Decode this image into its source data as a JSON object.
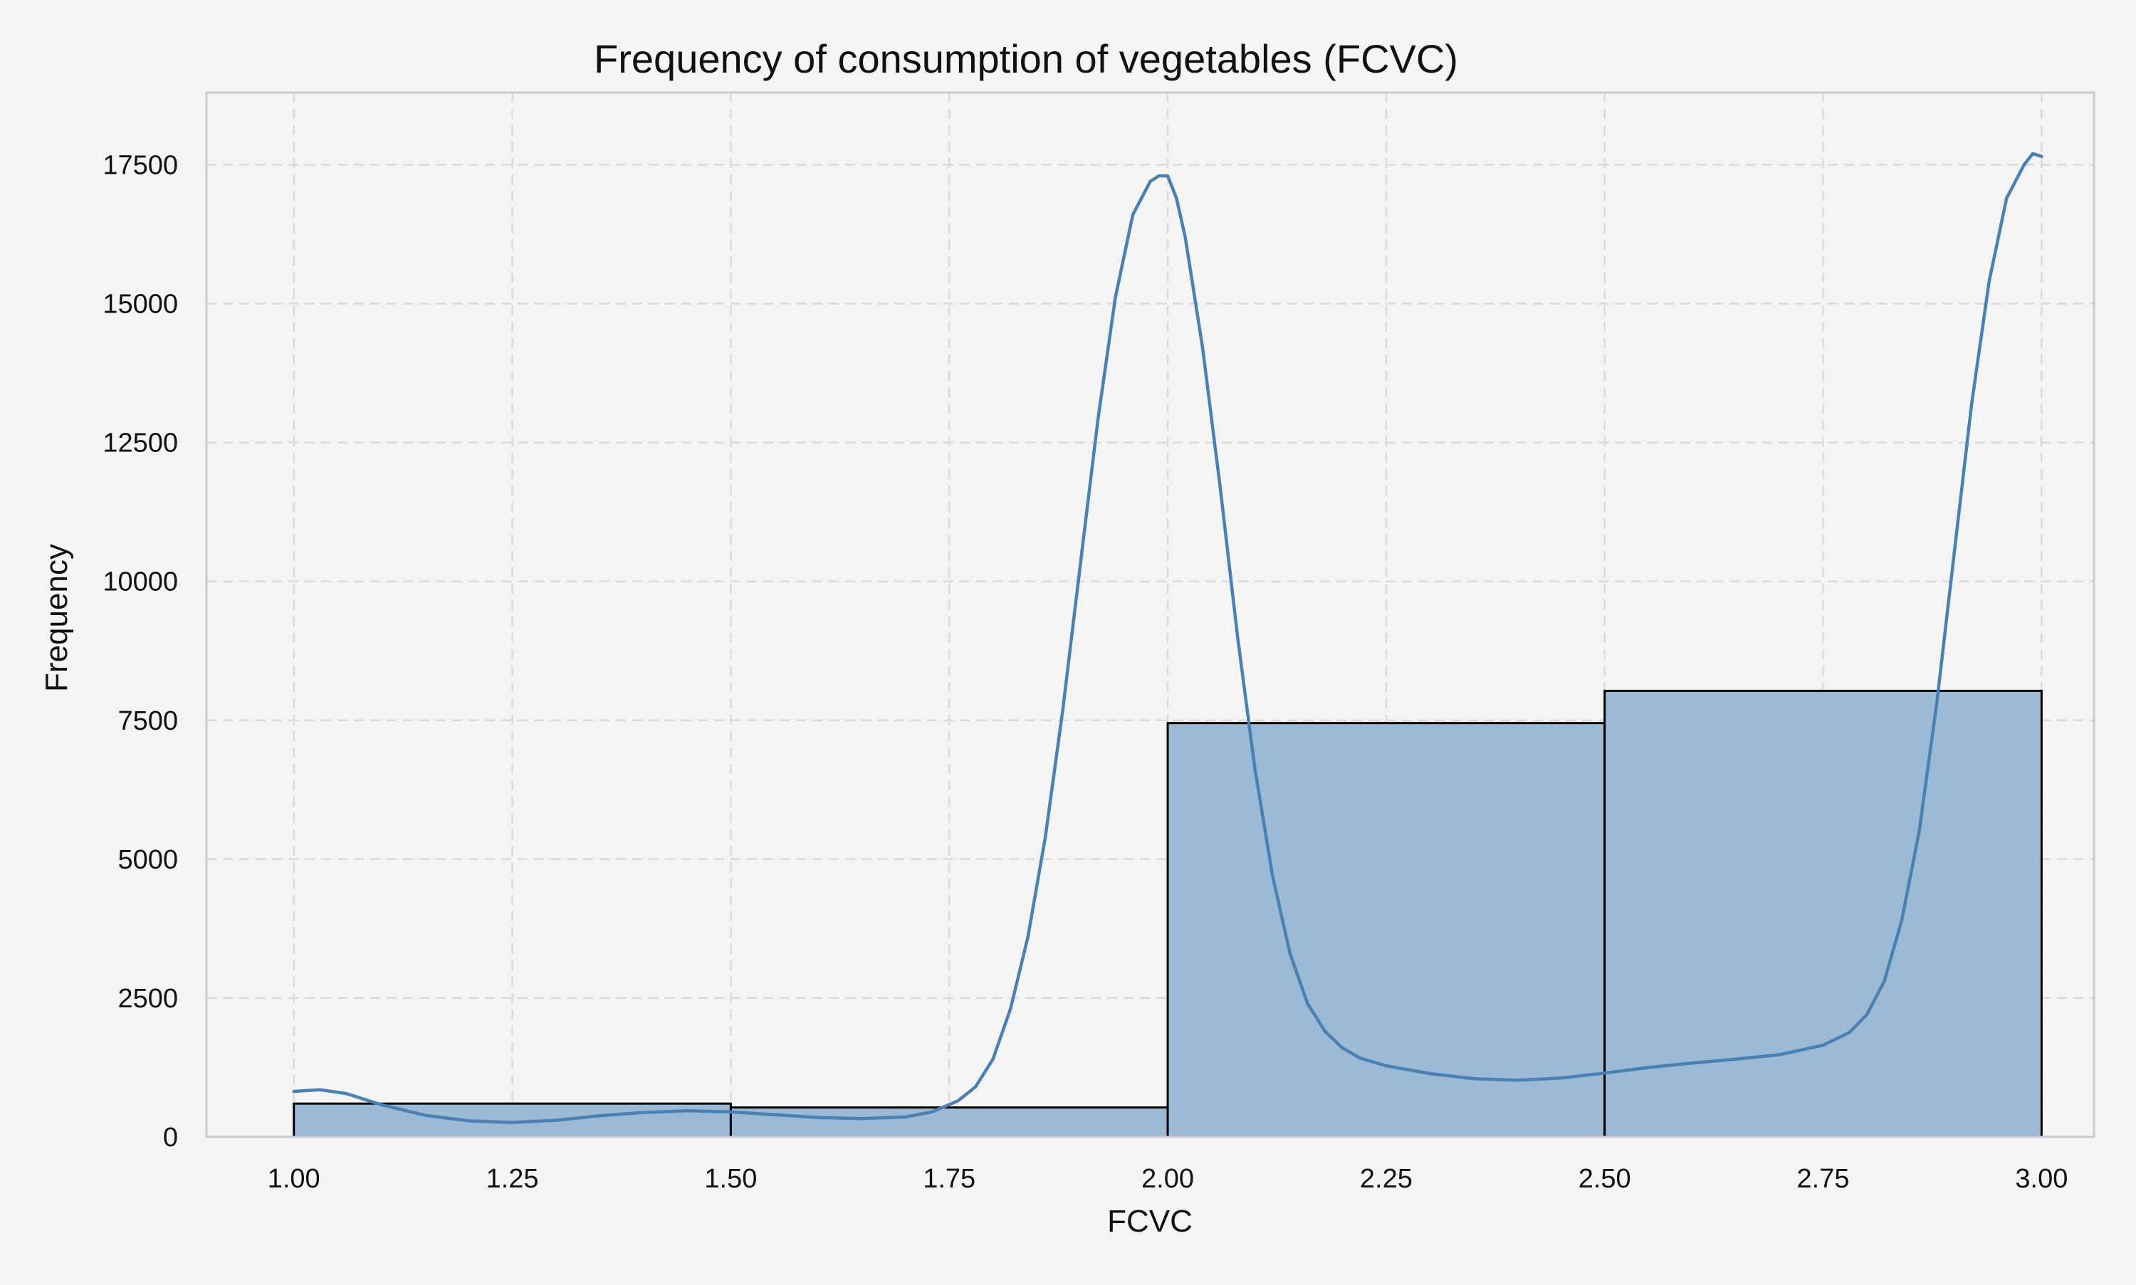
{
  "chart_data": {
    "type": "bar",
    "title": "Frequency of consumption of vegetables (FCVC)",
    "xlabel": "FCVC",
    "ylabel": "Frequency",
    "xlim": [
      0.9,
      3.06
    ],
    "ylim": [
      0,
      18800
    ],
    "xticks": [
      1.0,
      1.25,
      1.5,
      1.75,
      2.0,
      2.25,
      2.5,
      2.75,
      3.0
    ],
    "xtick_labels": [
      "1.00",
      "1.25",
      "1.50",
      "1.75",
      "2.00",
      "2.25",
      "2.50",
      "2.75",
      "3.00"
    ],
    "yticks": [
      0,
      2500,
      5000,
      7500,
      10000,
      12500,
      15000,
      17500
    ],
    "ytick_labels": [
      "0",
      "2500",
      "5000",
      "7500",
      "10000",
      "12500",
      "15000",
      "17500"
    ],
    "grid": true,
    "bins": [
      {
        "x0": 1.0,
        "x1": 1.5,
        "value": 600
      },
      {
        "x0": 1.5,
        "x1": 2.0,
        "value": 530
      },
      {
        "x0": 2.0,
        "x1": 2.5,
        "value": 7450
      },
      {
        "x0": 2.5,
        "x1": 3.0,
        "value": 8030
      }
    ],
    "kde": {
      "x": [
        1.0,
        1.03,
        1.06,
        1.1,
        1.15,
        1.2,
        1.25,
        1.3,
        1.35,
        1.4,
        1.45,
        1.5,
        1.55,
        1.6,
        1.65,
        1.7,
        1.73,
        1.76,
        1.78,
        1.8,
        1.82,
        1.84,
        1.86,
        1.88,
        1.9,
        1.92,
        1.94,
        1.96,
        1.98,
        1.99,
        2.0,
        2.01,
        2.02,
        2.04,
        2.06,
        2.08,
        2.1,
        2.12,
        2.14,
        2.16,
        2.18,
        2.2,
        2.22,
        2.25,
        2.3,
        2.35,
        2.4,
        2.45,
        2.5,
        2.55,
        2.6,
        2.65,
        2.7,
        2.75,
        2.78,
        2.8,
        2.82,
        2.84,
        2.86,
        2.88,
        2.9,
        2.92,
        2.94,
        2.96,
        2.98,
        2.99,
        3.0
      ],
      "y": [
        820,
        850,
        780,
        580,
        390,
        290,
        260,
        300,
        380,
        440,
        470,
        450,
        400,
        350,
        330,
        360,
        450,
        650,
        900,
        1400,
        2300,
        3600,
        5400,
        7700,
        10300,
        12900,
        15100,
        16600,
        17200,
        17300,
        17300,
        16900,
        16200,
        14200,
        11700,
        9000,
        6600,
        4700,
        3300,
        2400,
        1900,
        1600,
        1420,
        1280,
        1140,
        1050,
        1020,
        1060,
        1150,
        1250,
        1330,
        1400,
        1480,
        1650,
        1880,
        2200,
        2800,
        3900,
        5500,
        7800,
        10500,
        13200,
        15400,
        16900,
        17500,
        17700,
        17650
      ]
    }
  }
}
